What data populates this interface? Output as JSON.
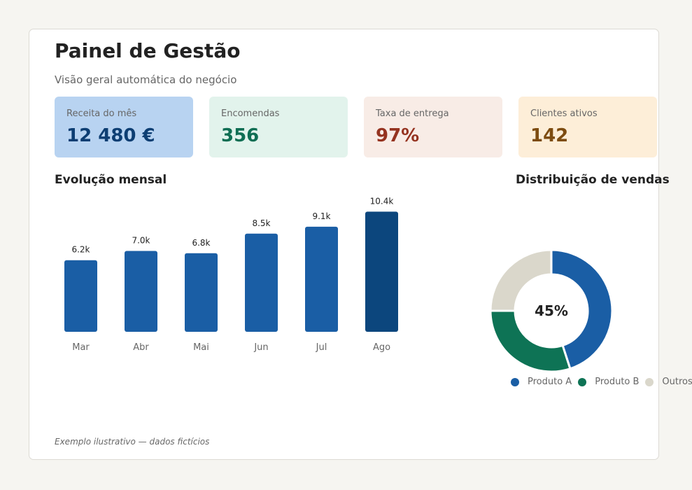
{
  "header": {
    "title": "Painel de Gestão",
    "subtitle": "Visão geral automática do negócio"
  },
  "kpis": [
    {
      "label": "Receita do mês",
      "value": "12 480 €",
      "bg": "#b8d3f1",
      "color": "#0d3e73"
    },
    {
      "label": "Encomendas",
      "value": "356",
      "bg": "#e2f3ec",
      "color": "#0f6e53"
    },
    {
      "label": "Taxa de entrega",
      "value": "97%",
      "bg": "#f8ece6",
      "color": "#953320"
    },
    {
      "label": "Clientes ativos",
      "value": "142",
      "bg": "#fdeed8",
      "color": "#7d4c10"
    }
  ],
  "chart_data": [
    {
      "type": "bar",
      "title": "Evolução mensal",
      "categories": [
        "Mar",
        "Abr",
        "Mai",
        "Jun",
        "Jul",
        "Ago"
      ],
      "values": [
        6.2,
        7.0,
        6.8,
        8.5,
        9.1,
        10.4
      ],
      "data_labels": [
        "6.2k",
        "7.0k",
        "6.8k",
        "8.5k",
        "9.1k",
        "10.4k"
      ],
      "colors": [
        "#1a5ea5",
        "#1a5ea5",
        "#1a5ea5",
        "#1a5ea5",
        "#1a5ea5",
        "#0c467d"
      ],
      "grid": false
    },
    {
      "type": "pie",
      "title": "Distribuição de vendas",
      "center_label": "45%",
      "categories": [
        "Produto A",
        "Produto B",
        "Outros"
      ],
      "values": [
        45,
        30,
        25
      ],
      "colors": [
        "#1a5ea5",
        "#0e7355",
        "#dad7cb"
      ],
      "legend_position": "bottom"
    }
  ],
  "footer": {
    "note": "Exemplo ilustrativo — dados fictícios"
  }
}
